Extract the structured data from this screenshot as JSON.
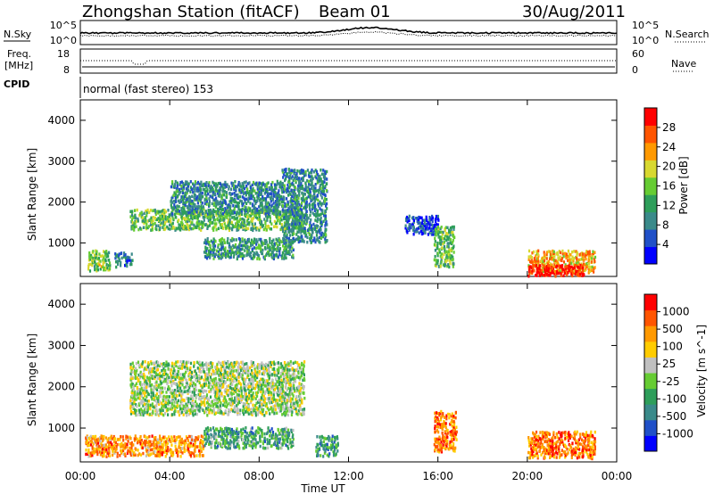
{
  "header": {
    "station": "Zhongshan Station (fitACF)",
    "beam": "Beam 01",
    "date": "30/Aug/2011"
  },
  "strips": {
    "nsky_label": "N.Sky",
    "nsky_ticks": [
      "10^5",
      "10^0"
    ],
    "nsearch_label": "N.Search",
    "nsearch_ticks": [
      "10^5",
      "10^0"
    ],
    "freq_label": "Freq.",
    "freq_unit": "[MHz]",
    "freq_ticks": [
      "18",
      "8"
    ],
    "nave_label": "Nave",
    "nave_ticks": [
      "60",
      "0"
    ],
    "cpid_label": "CPID",
    "cpid_text": "normal (fast stereo) 153"
  },
  "colors": {
    "power_scale": [
      "#0000ff",
      "#2050c8",
      "#3a8a8a",
      "#2e9e5a",
      "#66cc33",
      "#d8d830",
      "#ff9900",
      "#ff5500",
      "#ff0000"
    ],
    "velocity_scale": [
      "#0000ff",
      "#2050c8",
      "#3a8a8a",
      "#2e9e5a",
      "#66cc33",
      "#c0c0c0",
      "#ffcc00",
      "#ff9900",
      "#ff5500",
      "#ff0000"
    ]
  },
  "chart_data": [
    {
      "type": "heatmap",
      "title": "",
      "xlabel": "Time UT",
      "ylabel": "Slant Range [km]",
      "x_ticks": [
        "00:00",
        "04:00",
        "08:00",
        "12:00",
        "16:00",
        "20:00",
        "00:00"
      ],
      "y_ticks": [
        "1000",
        "2000",
        "3000",
        "4000"
      ],
      "ylim": [
        180,
        4500
      ],
      "xlim_hours": [
        0,
        24
      ],
      "colorbar": {
        "label": "Power [dB]",
        "ticks": [
          "28",
          "24",
          "20",
          "16",
          "12",
          "8",
          "4"
        ],
        "range": [
          0,
          30
        ]
      },
      "regions": [
        {
          "t0": 0.3,
          "t1": 1.3,
          "r0": 300,
          "r1": 800,
          "level": 0.5
        },
        {
          "t0": 1.5,
          "t1": 2.3,
          "r0": 400,
          "r1": 750,
          "level": 0.25
        },
        {
          "t0": 2.2,
          "t1": 10.0,
          "r0": 1300,
          "r1": 1800,
          "level": 0.45
        },
        {
          "t0": 4.0,
          "t1": 9.0,
          "r0": 1700,
          "r1": 2500,
          "level": 0.3
        },
        {
          "t0": 5.5,
          "t1": 9.5,
          "r0": 600,
          "r1": 1100,
          "level": 0.35
        },
        {
          "t0": 9.0,
          "t1": 11.0,
          "r0": 1000,
          "r1": 2800,
          "level": 0.3
        },
        {
          "t0": 14.5,
          "t1": 16.0,
          "r0": 1200,
          "r1": 1650,
          "level": 0.15
        },
        {
          "t0": 15.8,
          "t1": 16.7,
          "r0": 400,
          "r1": 1400,
          "level": 0.45
        },
        {
          "t0": 20.0,
          "t1": 23.0,
          "r0": 250,
          "r1": 800,
          "level": 0.7
        },
        {
          "t0": 20.0,
          "t1": 22.5,
          "r0": 180,
          "r1": 450,
          "level": 0.95
        }
      ]
    },
    {
      "type": "heatmap",
      "title": "",
      "xlabel": "Time UT",
      "ylabel": "Slant Range [km]",
      "x_ticks": [
        "00:00",
        "04:00",
        "08:00",
        "12:00",
        "16:00",
        "20:00",
        "00:00"
      ],
      "y_ticks": [
        "1000",
        "2000",
        "3000",
        "4000"
      ],
      "ylim": [
        180,
        4500
      ],
      "xlim_hours": [
        0,
        24
      ],
      "colorbar": {
        "label": "Velocity [m s^-1]",
        "ticks": [
          "1000",
          "500",
          "100",
          "25",
          "-25",
          "-100",
          "-500",
          "-1000"
        ],
        "range": [
          -1000,
          1000
        ]
      },
      "regions": [
        {
          "t0": 0.2,
          "t1": 5.5,
          "r0": 300,
          "r1": 800,
          "level": 0.75
        },
        {
          "t0": 2.2,
          "t1": 10.0,
          "r0": 1300,
          "r1": 2600,
          "level": 0.5
        },
        {
          "t0": 5.5,
          "t1": 9.5,
          "r0": 500,
          "r1": 1000,
          "level": 0.35
        },
        {
          "t0": 10.5,
          "t1": 11.5,
          "r0": 300,
          "r1": 800,
          "level": 0.3
        },
        {
          "t0": 15.8,
          "t1": 16.8,
          "r0": 400,
          "r1": 1400,
          "level": 0.8
        },
        {
          "t0": 20.0,
          "t1": 23.0,
          "r0": 250,
          "r1": 900,
          "level": 0.8
        }
      ]
    }
  ]
}
